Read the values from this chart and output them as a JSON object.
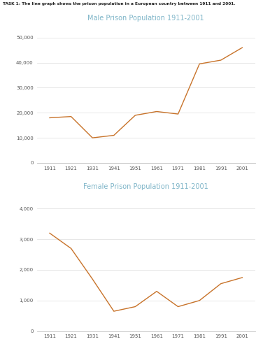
{
  "years": [
    1911,
    1921,
    1931,
    1941,
    1951,
    1961,
    1971,
    1981,
    1991,
    2001
  ],
  "male_values": [
    18000,
    18500,
    10000,
    11000,
    19000,
    20500,
    19500,
    39500,
    41000,
    46000
  ],
  "female_values": [
    3200,
    2700,
    1700,
    650,
    800,
    1300,
    800,
    1000,
    1550,
    1750
  ],
  "line_color": "#C8732A",
  "title_male": "Male Prison Population 1911-2001",
  "title_female": "Female Prison Population 1911-2001",
  "task_text": "TASK 1: The line graph shows the prison population in a European country between 1911 and 2001.",
  "title_color": "#7EB5C8",
  "task_color": "#222222",
  "bg_color": "#FFFFFF",
  "male_ylim": [
    0,
    55000
  ],
  "male_yticks": [
    0,
    10000,
    20000,
    30000,
    40000,
    50000
  ],
  "female_ylim": [
    0,
    4500
  ],
  "female_yticks": [
    0,
    1000,
    2000,
    3000,
    4000
  ],
  "figsize": [
    3.76,
    5.12
  ],
  "dpi": 100
}
